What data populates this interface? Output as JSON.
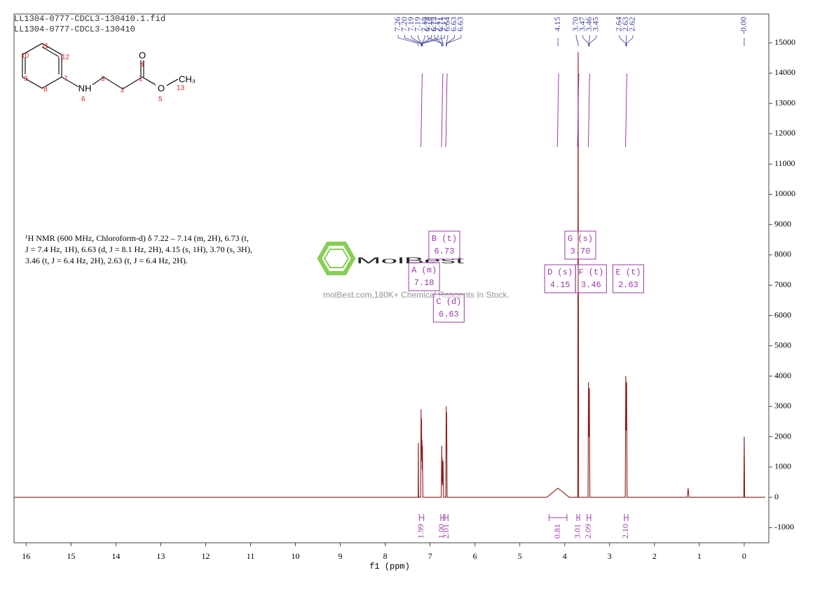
{
  "chart_data": {
    "type": "nmr",
    "header": [
      "LL1304-0777-CDCL3-130410.1.fid",
      "LL1304-0777-CDCL3-130410"
    ],
    "x_label": "f1 (ppm)",
    "xlim": [
      16.27,
      -0.47
    ],
    "xticks": [
      16,
      15,
      14,
      13,
      12,
      11,
      10,
      9,
      8,
      7,
      6,
      5,
      4,
      3,
      2,
      1,
      0
    ],
    "ylim": [
      -1500,
      15950
    ],
    "yticks": [
      -1000,
      0,
      1000,
      2000,
      3000,
      4000,
      5000,
      6000,
      7000,
      8000,
      9000,
      10000,
      11000,
      12000,
      13000,
      14000,
      15000
    ],
    "color": "#8b1a1a",
    "x": [
      16.27,
      7.3,
      7.265,
      7.26,
      7.255,
      7.21,
      7.2,
      7.195,
      7.19,
      7.185,
      7.18,
      7.175,
      7.17,
      7.16,
      6.75,
      6.74,
      6.735,
      6.73,
      6.725,
      6.71,
      6.7,
      6.65,
      6.64,
      6.635,
      6.63,
      6.62,
      4.4,
      4.15,
      3.9,
      3.71,
      3.7,
      3.69,
      3.48,
      3.47,
      3.46,
      3.45,
      3.44,
      2.65,
      2.64,
      2.63,
      2.62,
      2.61,
      1.27,
      1.25,
      1.23,
      0.01,
      0,
      -0.01,
      -0.47
    ],
    "values": [
      0,
      0,
      0,
      1800,
      0,
      0,
      2900,
      1500,
      2600,
      1200,
      1900,
      900,
      1700,
      0,
      0,
      1700,
      500,
      1300,
      400,
      1200,
      0,
      0,
      3000,
      1500,
      2800,
      0,
      0,
      300,
      0,
      0,
      14700,
      0,
      0,
      3800,
      2000,
      3600,
      0,
      0,
      4000,
      2200,
      3800,
      0,
      0,
      300,
      0,
      0,
      2000,
      0,
      0
    ],
    "peak_labels": [
      "7.26",
      "7.20",
      "7.19",
      "7.19",
      "7.18",
      "7.18",
      "7.17",
      "7.17",
      "6.74",
      "6.73",
      "6.71",
      "6.64",
      "6.63",
      "6.63",
      "4.15",
      "3.70",
      "3.47",
      "3.46",
      "3.45",
      "2.64",
      "2.63",
      "2.62",
      "-0.00"
    ],
    "multiplets": [
      {
        "name": "A (m)",
        "shift": "7.18"
      },
      {
        "name": "B (t)",
        "shift": "6.73"
      },
      {
        "name": "C (d)",
        "shift": "6.63"
      },
      {
        "name": "D (s)",
        "shift": "4.15"
      },
      {
        "name": "E (t)",
        "shift": "2.63"
      },
      {
        "name": "F (t)",
        "shift": "3.46"
      },
      {
        "name": "G (s)",
        "shift": "3.70"
      }
    ],
    "integrals": [
      {
        "label": "1.99",
        "from": 7.24,
        "to": 7.14
      },
      {
        "label": "1.00",
        "from": 6.76,
        "to": 6.7
      },
      {
        "label": "2.01",
        "from": 6.67,
        "to": 6.6
      },
      {
        "label": "0.81",
        "from": 4.35,
        "to": 3.95
      },
      {
        "label": "3.01",
        "from": 3.73,
        "to": 3.67
      },
      {
        "label": "2.09",
        "from": 3.5,
        "to": 3.42
      },
      {
        "label": "2.10",
        "from": 2.67,
        "to": 2.59
      }
    ],
    "description": [
      "¹H NMR (600 MHz, Chloroform-d) δ 7.22 – 7.14 (m, 2H), 6.73 (t,",
      "J = 7.4 Hz, 1H), 6.63 (d, J = 8.1 Hz, 2H), 4.15 (s, 1H), 3.70 (s, 3H),",
      "3.46 (t, J = 6.4 Hz, 2H), 2.63 (t, J = 6.4 Hz, 2H)."
    ],
    "molecule": {
      "atoms": [
        "NH",
        "O",
        "O",
        "CH₃"
      ],
      "numbers": [
        "1",
        "2",
        "3",
        "4",
        "5",
        "6",
        "7",
        "8",
        "9",
        "10",
        "11",
        "12",
        "13"
      ]
    },
    "watermark": {
      "brand": "MolBest",
      "slogan": "molBest.com,180K+ Chemical Reagents In Stock."
    }
  }
}
